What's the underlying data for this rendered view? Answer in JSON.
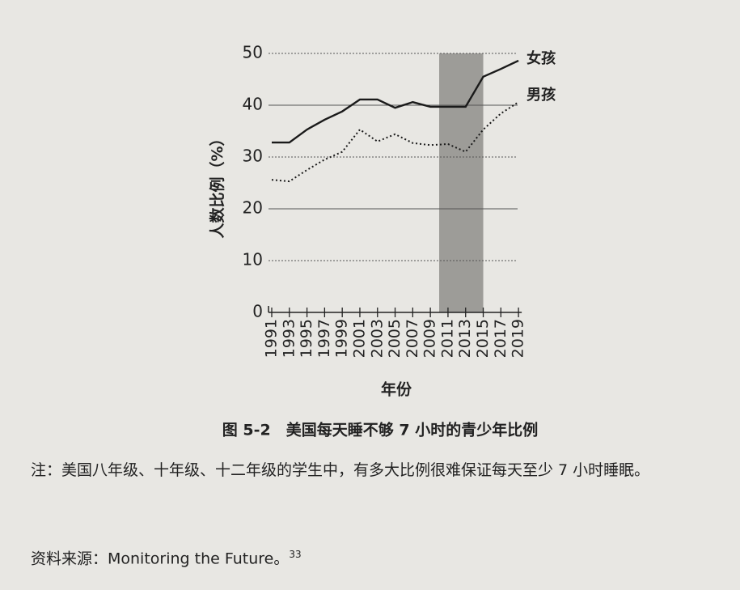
{
  "chart_data": {
    "type": "line",
    "y_label": "人数比例（%）",
    "x_label": "年份",
    "x": [
      1991,
      1993,
      1995,
      1997,
      1999,
      2001,
      2003,
      2005,
      2007,
      2009,
      2011,
      2013,
      2015,
      2017,
      2019
    ],
    "xlim": [
      1991,
      2020
    ],
    "xticks": [
      1991,
      1993,
      1995,
      1997,
      1999,
      2001,
      2003,
      2005,
      2007,
      2009,
      2011,
      2013,
      2015,
      2017,
      2019
    ],
    "ylim": [
      0,
      50
    ],
    "yticks": [
      0,
      10,
      20,
      30,
      40,
      50
    ],
    "grid": true,
    "shaded_range": [
      2010,
      2015
    ],
    "series": [
      {
        "name": "女孩",
        "color": "#1a1a1a",
        "style": "solid",
        "values": [
          32.8,
          32.8,
          35.3,
          37.2,
          38.8,
          41.1,
          41.1,
          39.5,
          40.6,
          39.7,
          39.7,
          39.7,
          45.5,
          47.0,
          48.6
        ]
      },
      {
        "name": "男孩",
        "color": "#1a1a1a",
        "style": "dotted",
        "values": [
          25.6,
          25.3,
          27.5,
          29.5,
          31.0,
          35.3,
          33.0,
          34.4,
          32.7,
          32.3,
          32.5,
          31.0,
          35.3,
          38.4,
          40.6
        ]
      }
    ]
  },
  "caption": "图 5-2　美国每天睡不够 7 小时的青少年比例",
  "note": "注：美国八年级、十年级、十二年级的学生中，有多大比例很难保证每天至少 7 小时睡眠。",
  "source": {
    "text": "资料来源：Monitoring the Future。",
    "ref": "33"
  }
}
